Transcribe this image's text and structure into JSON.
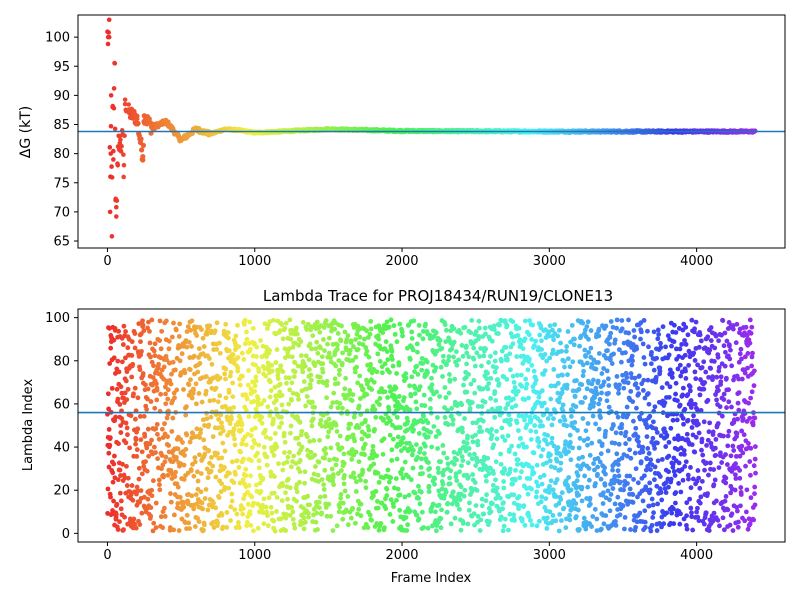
{
  "chart_data": [
    {
      "type": "scatter",
      "title": "",
      "xlabel": "",
      "ylabel": "ΔG (kT)",
      "xlim": [
        -200,
        4600
      ],
      "ylim": [
        63.8,
        103.8
      ],
      "xticks": [
        0,
        1000,
        2000,
        3000,
        4000
      ],
      "yticks": [
        65,
        70,
        75,
        80,
        85,
        90,
        95,
        100
      ],
      "hline": {
        "y": 83.8,
        "color": "#1f77b4"
      },
      "grid": false,
      "legend": "none",
      "color_scheme": "rainbow (red → violet with frame index)",
      "n_frames": 4400,
      "series": [
        {
          "description": "converging free-energy estimate",
          "points": [
            [
              5,
              100
            ],
            [
              12,
              100
            ],
            [
              18,
              70
            ],
            [
              22,
              80
            ],
            [
              25,
              90
            ],
            [
              30,
              65.8
            ],
            [
              35,
              88
            ],
            [
              40,
              79
            ],
            [
              45,
              91.2
            ],
            [
              50,
              95.5
            ],
            [
              55,
              72
            ],
            [
              60,
              70.8
            ],
            [
              70,
              78
            ],
            [
              80,
              83
            ],
            [
              90,
              80.5
            ],
            [
              100,
              84
            ],
            [
              110,
              76
            ],
            [
              120,
              88.5
            ],
            [
              150,
              87
            ],
            [
              200,
              86
            ],
            [
              240,
              79.5
            ],
            [
              250,
              86.5
            ],
            [
              300,
              84.5
            ],
            [
              400,
              85.5
            ],
            [
              500,
              82.3
            ],
            [
              600,
              84.2
            ],
            [
              700,
              83.4
            ],
            [
              800,
              84.2
            ],
            [
              900,
              84
            ],
            [
              1000,
              83.6
            ],
            [
              1500,
              84.2
            ],
            [
              2000,
              83.9
            ],
            [
              3000,
              83.8
            ],
            [
              4000,
              83.8
            ],
            [
              4380,
              83.8
            ]
          ]
        }
      ]
    },
    {
      "type": "scatter",
      "title": "Lambda Trace for PROJ18434/RUN19/CLONE13",
      "xlabel": "Frame Index",
      "ylabel": "Lambda Index",
      "xlim": [
        -200,
        4600
      ],
      "ylim": [
        -4,
        104
      ],
      "xticks": [
        0,
        1000,
        2000,
        3000,
        4000
      ],
      "yticks": [
        0,
        20,
        40,
        60,
        80,
        100
      ],
      "hline": {
        "y": 56,
        "color": "#1f77b4"
      },
      "grid": false,
      "legend": "none",
      "color_scheme": "rainbow (red → violet with frame index)",
      "n_frames": 4400,
      "series": [
        {
          "description": "lambda index visited at each frame, roughly uniform over 1–99",
          "x_range": [
            0,
            4400
          ],
          "y_range": [
            1,
            99
          ]
        }
      ]
    }
  ]
}
